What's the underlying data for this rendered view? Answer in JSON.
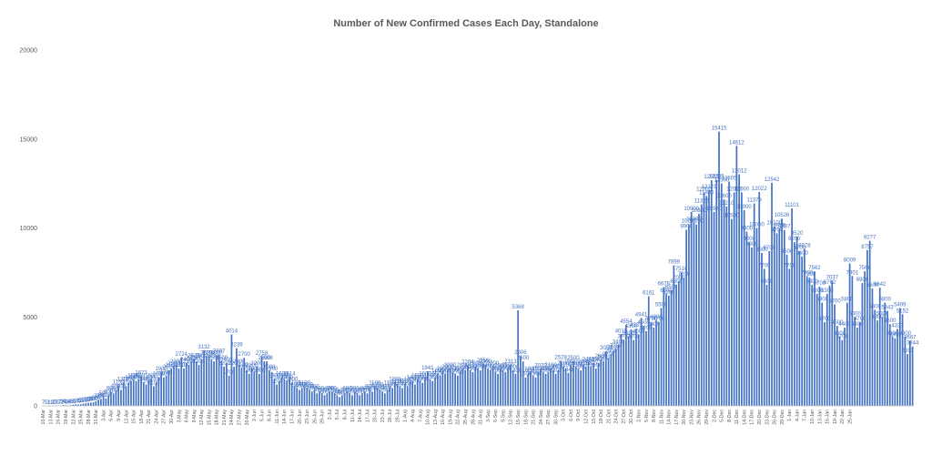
{
  "chart_data": {
    "type": "bar",
    "title": "Number of New Confirmed Cases Each Day, Standalone",
    "xlabel": "",
    "ylabel": "",
    "ylim": [
      0,
      20000
    ],
    "yticks": [
      0,
      5000,
      10000,
      15000,
      20000
    ],
    "grid": false,
    "legend": "none",
    "bar_color": "#4472c4",
    "start_date": "2020-03-10",
    "tick_every_days": 3,
    "tick_labels": [
      "10-Mar",
      "13-Mar",
      "16-Mar",
      "19-Mar",
      "22-Mar",
      "25-Mar",
      "28-Mar",
      "31-Mar",
      "3-Apr",
      "6-Apr",
      "9-Apr",
      "12-Apr",
      "15-Apr",
      "18-Apr",
      "21-Apr",
      "24-Apr",
      "27-Apr",
      "30-Apr",
      "3-May",
      "6-May",
      "9-May",
      "12-May",
      "15-May",
      "18-May",
      "21-May",
      "24-May",
      "27-May",
      "30-May",
      "2-Jun",
      "5-Jun",
      "8-Jun",
      "11-Jun",
      "14-Jun",
      "17-Jun",
      "20-Jun",
      "23-Jun",
      "26-Jun",
      "29-Jun",
      "2-Jul",
      "5-Jul",
      "8-Jul",
      "11-Jul",
      "14-Jul",
      "17-Jul",
      "20-Jul",
      "23-Jul",
      "26-Jul",
      "29-Jul",
      "1-Aug",
      "4-Aug",
      "7-Aug",
      "10-Aug",
      "13-Aug",
      "16-Aug",
      "19-Aug",
      "22-Aug",
      "25-Aug",
      "28-Aug",
      "31-Aug",
      "3-Sep",
      "6-Sep",
      "9-Sep",
      "12-Sep",
      "15-Sep",
      "18-Sep",
      "21-Sep",
      "24-Sep",
      "27-Sep",
      "30-Sep",
      "3-Oct",
      "6-Oct",
      "9-Oct",
      "12-Oct",
      "15-Oct",
      "18-Oct",
      "21-Oct",
      "24-Oct",
      "27-Oct",
      "30-Oct",
      "2-Nov",
      "5-Nov",
      "8-Nov",
      "11-Nov",
      "14-Nov",
      "17-Nov",
      "20-Nov",
      "23-Nov",
      "26-Nov",
      "29-Nov",
      "2-Dec",
      "5-Dec",
      "8-Dec",
      "11-Dec",
      "14-Dec",
      "17-Dec",
      "20-Dec",
      "23-Dec",
      "26-Dec",
      "29-Dec",
      "1-Jan",
      "4-Jan",
      "7-Jan",
      "10-Jan",
      "13-Jan",
      "16-Jan",
      "19-Jan",
      "22-Jan",
      "25-Jan"
    ],
    "values": [
      7,
      5,
      3,
      12,
      10,
      21,
      17,
      22,
      39,
      41,
      28,
      43,
      61,
      84,
      75,
      95,
      122,
      142,
      170,
      180,
      200,
      264,
      346,
      394,
      500,
      418,
      600,
      800,
      700,
      900,
      1150,
      900,
      1300,
      1100,
      1300,
      1400,
      1500,
      1400,
      1500,
      1673,
      1300,
      1200,
      1400,
      1500,
      1100,
      1300,
      1600,
      1900,
      1600,
      1700,
      2000,
      2100,
      2200,
      2300,
      2100,
      2724,
      2100,
      2400,
      2300,
      2500,
      2625,
      2500,
      2300,
      2600,
      3132,
      2800,
      2794,
      2600,
      2500,
      2800,
      2887,
      2500,
      2200,
      2400,
      1700,
      4014,
      2200,
      3239,
      2300,
      2100,
      2700,
      2000,
      1800,
      2100,
      1900,
      2200,
      1800,
      2758,
      2500,
      2508,
      2000,
      1900,
      1500,
      1200,
      1400,
      1600,
      1500,
      1400,
      1614,
      1300,
      1100,
      1000,
      900,
      1000,
      1100,
      1000,
      900,
      800,
      900,
      700,
      800,
      700,
      600,
      700,
      800,
      800,
      700,
      600,
      500,
      600,
      700,
      800,
      700,
      600,
      800,
      700,
      600,
      700,
      800,
      700,
      900,
      800,
      1100,
      1000,
      900,
      800,
      700,
      900,
      1100,
      1000,
      1300,
      1200,
      1100,
      1000,
      1200,
      1100,
      1300,
      1400,
      1200,
      1500,
      1400,
      1300,
      1600,
      1941,
      1500,
      1400,
      1600,
      1800,
      1700,
      1900,
      1800,
      2000,
      2090,
      1900,
      1800,
      1700,
      1900,
      2100,
      2000,
      2264,
      2000,
      1900,
      2200,
      2100,
      2000,
      2356,
      2300,
      2100,
      2000,
      2200,
      1900,
      1800,
      2080,
      2000,
      1900,
      2100,
      2313,
      2000,
      1800,
      5368,
      2806,
      2500,
      1600,
      1800,
      1900,
      1700,
      1600,
      1900,
      2070,
      1900,
      1800,
      1900,
      2100,
      2000,
      1800,
      2000,
      2529,
      2200,
      2100,
      1848,
      2300,
      2500,
      2200,
      2100,
      2000,
      2300,
      2200,
      2442,
      2200,
      2400,
      2100,
      2400,
      2600,
      2500,
      3059,
      2700,
      2900,
      3100,
      3200,
      3400,
      4015,
      3700,
      4554,
      3900,
      4300,
      3700,
      4337,
      4000,
      4941,
      4500,
      4200,
      6161,
      4700,
      4400,
      4800,
      4700,
      5500,
      6676,
      6300,
      6200,
      6500,
      7899,
      6800,
      7000,
      7510,
      7200,
      9900,
      10200,
      10900,
      10300,
      10200,
      10800,
      11326,
      12000,
      11800,
      12121,
      12681,
      10900,
      12705,
      15415,
      12500,
      11600,
      11210,
      12605,
      10500,
      12000,
      14612,
      13012,
      12000,
      11000,
      9800,
      9200,
      8900,
      11378,
      10000,
      12022,
      8600,
      7700,
      6800,
      8700,
      12542,
      10100,
      9700,
      9959,
      10526,
      9887,
      8500,
      7700,
      11101,
      9200,
      9520,
      8700,
      8400,
      8828,
      7300,
      7200,
      6800,
      7562,
      6300,
      6700,
      5800,
      4700,
      6300,
      6762,
      7037,
      5700,
      4500,
      3900,
      3700,
      4400,
      5800,
      8009,
      7301,
      5000,
      4400,
      4700,
      6900,
      7566,
      8757,
      9277,
      6600,
      5400,
      4800,
      6642,
      5000,
      5800,
      5343,
      4600,
      3900,
      3800,
      4327,
      5499,
      5152,
      3900,
      2913,
      3667,
      3344
    ]
  }
}
